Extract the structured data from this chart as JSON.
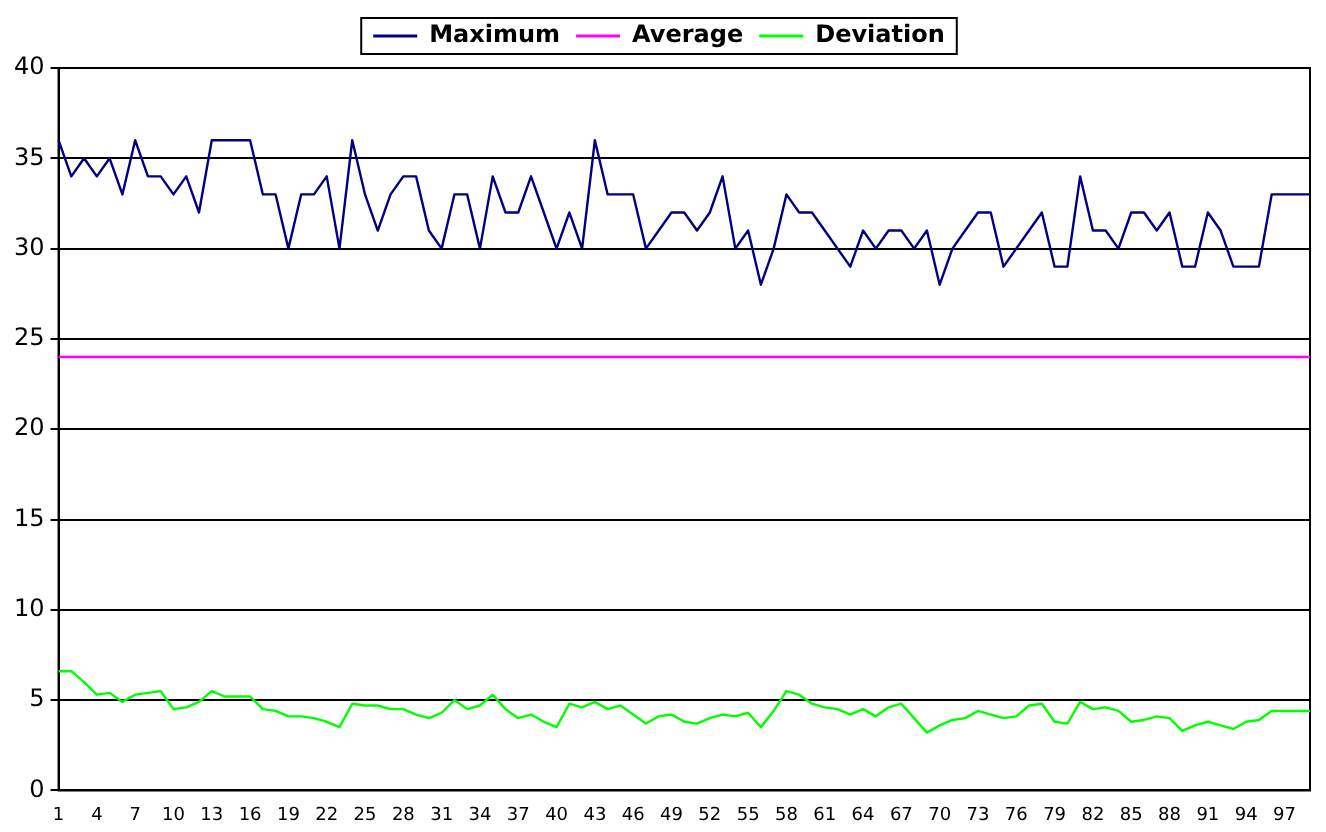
{
  "chart_data": {
    "type": "line",
    "categories": [
      "1",
      null,
      null,
      "4",
      null,
      null,
      "7",
      null,
      null,
      "10",
      null,
      null,
      "13",
      null,
      null,
      "16",
      null,
      null,
      "19",
      null,
      null,
      "22",
      null,
      null,
      "25",
      null,
      null,
      "28",
      null,
      null,
      "31",
      null,
      null,
      "34",
      null,
      null,
      "37",
      null,
      null,
      "40",
      null,
      null,
      "43",
      null,
      null,
      "46",
      null,
      null,
      "49",
      null,
      null,
      "52",
      null,
      null,
      "55",
      null,
      null,
      "58",
      null,
      null,
      "61",
      null,
      null,
      "64",
      null,
      null,
      "67",
      null,
      null,
      "70",
      null,
      null,
      "73",
      null,
      null,
      "76",
      null,
      null,
      "79",
      null,
      null,
      "82",
      null,
      null,
      "85",
      null,
      null,
      "88",
      null,
      null,
      "91",
      null,
      null,
      "94",
      null,
      null,
      "97",
      null,
      null
    ],
    "series": [
      {
        "name": "Maximum",
        "color": "#000080",
        "values": [
          36,
          34,
          35,
          34,
          35,
          33,
          36,
          34,
          34,
          33,
          34,
          32,
          36,
          36,
          36,
          36,
          33,
          33,
          30,
          33,
          33,
          34,
          30,
          36,
          33,
          31,
          33,
          34,
          34,
          31,
          30,
          33,
          33,
          30,
          34,
          32,
          32,
          34,
          32,
          30,
          32,
          30,
          36,
          33,
          33,
          33,
          30,
          31,
          32,
          32,
          31,
          32,
          34,
          30,
          31,
          28,
          30,
          33,
          32,
          32,
          31,
          30,
          29,
          31,
          30,
          31,
          31,
          30,
          31,
          28,
          30,
          31,
          32,
          32,
          29,
          30,
          31,
          32,
          29,
          29,
          34,
          31,
          31,
          30,
          32,
          32,
          31,
          32,
          29,
          29,
          32,
          31,
          29,
          29,
          29,
          33,
          33,
          33,
          33
        ]
      },
      {
        "name": "Average",
        "color": "#ff00ff",
        "values": [
          24,
          24,
          24,
          24,
          24,
          24,
          24,
          24,
          24,
          24,
          24,
          24,
          24,
          24,
          24,
          24,
          24,
          24,
          24,
          24,
          24,
          24,
          24,
          24,
          24,
          24,
          24,
          24,
          24,
          24,
          24,
          24,
          24,
          24,
          24,
          24,
          24,
          24,
          24,
          24,
          24,
          24,
          24,
          24,
          24,
          24,
          24,
          24,
          24,
          24,
          24,
          24,
          24,
          24,
          24,
          24,
          24,
          24,
          24,
          24,
          24,
          24,
          24,
          24,
          24,
          24,
          24,
          24,
          24,
          24,
          24,
          24,
          24,
          24,
          24,
          24,
          24,
          24,
          24,
          24,
          24,
          24,
          24,
          24,
          24,
          24,
          24,
          24,
          24,
          24,
          24,
          24,
          24,
          24,
          24,
          24,
          24,
          24,
          24
        ]
      },
      {
        "name": "Deviation",
        "color": "#00ff00",
        "values": [
          6.6,
          6.6,
          6.0,
          5.3,
          5.4,
          4.9,
          5.3,
          5.4,
          5.5,
          4.5,
          4.6,
          4.9,
          5.5,
          5.2,
          5.2,
          5.2,
          4.5,
          4.4,
          4.1,
          4.1,
          4.0,
          3.8,
          3.5,
          4.8,
          4.7,
          4.7,
          4.5,
          4.5,
          4.2,
          4.0,
          4.3,
          5.0,
          4.5,
          4.7,
          5.3,
          4.5,
          4.0,
          4.2,
          3.8,
          3.5,
          4.8,
          4.6,
          4.9,
          4.5,
          4.7,
          4.2,
          3.7,
          4.1,
          4.2,
          3.8,
          3.7,
          4.0,
          4.2,
          4.1,
          4.3,
          3.5,
          4.4,
          5.5,
          5.3,
          4.8,
          4.6,
          4.5,
          4.2,
          4.5,
          4.1,
          4.6,
          4.8,
          4.0,
          3.2,
          3.6,
          3.9,
          4.0,
          4.4,
          4.2,
          4.0,
          4.1,
          4.7,
          4.8,
          3.8,
          3.7,
          4.9,
          4.5,
          4.6,
          4.4,
          3.8,
          3.9,
          4.1,
          4.0,
          3.3,
          3.6,
          3.8,
          3.6,
          3.4,
          3.8,
          3.9,
          4.4,
          4.4,
          4.4,
          4.4
        ]
      }
    ],
    "ylim": [
      0,
      40
    ],
    "yticks": [
      0,
      5,
      10,
      15,
      20,
      25,
      30,
      35,
      40
    ],
    "grid": "y",
    "legend": "top",
    "marker": "none",
    "line_style": "solid"
  }
}
